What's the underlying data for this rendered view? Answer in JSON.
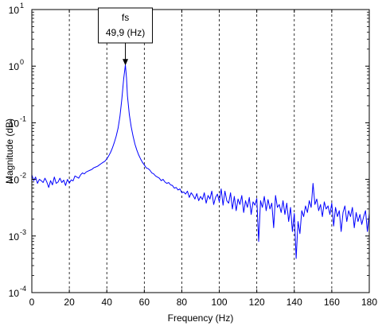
{
  "chart_data": {
    "type": "line",
    "xlabel": "Frequency (Hz)",
    "ylabel": "Magnitude  (dB)",
    "xlim": [
      0,
      180
    ],
    "ylim": [
      0.0001,
      10
    ],
    "yscale": "log",
    "x_ticks": [
      0,
      20,
      40,
      60,
      80,
      100,
      120,
      140,
      160,
      180
    ],
    "x_tick_labels": [
      "0",
      "20",
      "40",
      "60",
      "80",
      "100",
      "120",
      "140",
      "160",
      "180"
    ],
    "y_ticks": [
      {
        "value": 0.0001,
        "base": "10",
        "exp": "-4"
      },
      {
        "value": 0.001,
        "base": "10",
        "exp": "-3"
      },
      {
        "value": 0.01,
        "base": "10",
        "exp": "-2"
      },
      {
        "value": 0.1,
        "base": "10",
        "exp": "-1"
      },
      {
        "value": 1,
        "base": "10",
        "exp": "0"
      },
      {
        "value": 10,
        "base": "10",
        "exp": "1"
      }
    ],
    "grid": "vertical dashed lines at x ticks",
    "line_color": "#0000ff",
    "annotation": {
      "line1": "fs",
      "line2": "49,9 (Hz)",
      "x": 49.9,
      "y": 1.0
    },
    "series": [
      {
        "points": [
          [
            0,
            0.012
          ],
          [
            1,
            0.0095
          ],
          [
            2,
            0.011
          ],
          [
            3,
            0.0085
          ],
          [
            4,
            0.01
          ],
          [
            5,
            0.0095
          ],
          [
            6,
            0.0088
          ],
          [
            7,
            0.0105
          ],
          [
            8,
            0.009
          ],
          [
            9,
            0.0072
          ],
          [
            10,
            0.0095
          ],
          [
            11,
            0.008
          ],
          [
            12,
            0.011
          ],
          [
            13,
            0.0085
          ],
          [
            14,
            0.009
          ],
          [
            15,
            0.0105
          ],
          [
            16,
            0.0088
          ],
          [
            17,
            0.0097
          ],
          [
            18,
            0.0078
          ],
          [
            19,
            0.01
          ],
          [
            20,
            0.0086
          ],
          [
            21,
            0.0098
          ],
          [
            22,
            0.0094
          ],
          [
            23,
            0.0115
          ],
          [
            24,
            0.011
          ],
          [
            25,
            0.0105
          ],
          [
            26,
            0.012
          ],
          [
            27,
            0.013
          ],
          [
            28,
            0.0125
          ],
          [
            29,
            0.0135
          ],
          [
            30,
            0.014
          ],
          [
            31,
            0.0145
          ],
          [
            32,
            0.015
          ],
          [
            33,
            0.016
          ],
          [
            34,
            0.0165
          ],
          [
            35,
            0.017
          ],
          [
            36,
            0.018
          ],
          [
            37,
            0.019
          ],
          [
            38,
            0.02
          ],
          [
            39,
            0.021
          ],
          [
            40,
            0.023
          ],
          [
            41,
            0.026
          ],
          [
            42,
            0.03
          ],
          [
            43,
            0.036
          ],
          [
            44,
            0.045
          ],
          [
            45,
            0.058
          ],
          [
            46,
            0.08
          ],
          [
            47,
            0.13
          ],
          [
            48,
            0.26
          ],
          [
            49,
            0.6
          ],
          [
            49.9,
            1.05
          ],
          [
            50.5,
            0.62
          ],
          [
            51,
            0.3
          ],
          [
            52,
            0.14
          ],
          [
            53,
            0.085
          ],
          [
            54,
            0.058
          ],
          [
            55,
            0.042
          ],
          [
            56,
            0.033
          ],
          [
            57,
            0.027
          ],
          [
            58,
            0.023
          ],
          [
            59,
            0.02
          ],
          [
            60,
            0.018
          ],
          [
            61,
            0.016
          ],
          [
            62,
            0.0155
          ],
          [
            63,
            0.0145
          ],
          [
            64,
            0.013
          ],
          [
            65,
            0.0125
          ],
          [
            66,
            0.0115
          ],
          [
            67,
            0.011
          ],
          [
            68,
            0.0105
          ],
          [
            69,
            0.0095
          ],
          [
            70,
            0.01
          ],
          [
            71,
            0.009
          ],
          [
            72,
            0.0085
          ],
          [
            73,
            0.0088
          ],
          [
            74,
            0.008
          ],
          [
            75,
            0.0078
          ],
          [
            76,
            0.007
          ],
          [
            77,
            0.0072
          ],
          [
            78,
            0.0065
          ],
          [
            79,
            0.0068
          ],
          [
            80,
            0.0058
          ],
          [
            81,
            0.006
          ],
          [
            82,
            0.0055
          ],
          [
            83,
            0.0062
          ],
          [
            84,
            0.0048
          ],
          [
            85,
            0.0058
          ],
          [
            86,
            0.0052
          ],
          [
            87,
            0.0045
          ],
          [
            88,
            0.0056
          ],
          [
            89,
            0.0042
          ],
          [
            90,
            0.005
          ],
          [
            91,
            0.0044
          ],
          [
            92,
            0.0058
          ],
          [
            93,
            0.0038
          ],
          [
            94,
            0.0052
          ],
          [
            95,
            0.0045
          ],
          [
            96,
            0.0062
          ],
          [
            97,
            0.0036
          ],
          [
            98,
            0.0048
          ],
          [
            99,
            0.0055
          ],
          [
            100,
            0.004
          ],
          [
            101,
            0.0068
          ],
          [
            102,
            0.0035
          ],
          [
            103,
            0.0062
          ],
          [
            104,
            0.0042
          ],
          [
            105,
            0.0038
          ],
          [
            106,
            0.0058
          ],
          [
            107,
            0.003
          ],
          [
            108,
            0.005
          ],
          [
            109,
            0.0028
          ],
          [
            110,
            0.0045
          ],
          [
            111,
            0.0036
          ],
          [
            112,
            0.0052
          ],
          [
            113,
            0.0026
          ],
          [
            114,
            0.0042
          ],
          [
            115,
            0.0032
          ],
          [
            116,
            0.0048
          ],
          [
            117,
            0.0024
          ],
          [
            118,
            0.004
          ],
          [
            119,
            0.0035
          ],
          [
            120,
            0.0046
          ],
          [
            121,
            0.0008
          ],
          [
            122,
            0.0042
          ],
          [
            123,
            0.0032
          ],
          [
            124,
            0.005
          ],
          [
            125,
            0.0028
          ],
          [
            126,
            0.0044
          ],
          [
            127,
            0.003
          ],
          [
            128,
            0.0038
          ],
          [
            129,
            0.0014
          ],
          [
            130,
            0.0052
          ],
          [
            131,
            0.0032
          ],
          [
            132,
            0.0036
          ],
          [
            133,
            0.0026
          ],
          [
            134,
            0.0042
          ],
          [
            135,
            0.0024
          ],
          [
            136,
            0.0038
          ],
          [
            137,
            0.0018
          ],
          [
            138,
            0.0032
          ],
          [
            139,
            0.0012
          ],
          [
            140,
            0.0025
          ],
          [
            141,
            0.0004
          ],
          [
            142,
            0.0018
          ],
          [
            143,
            0.0011
          ],
          [
            144,
            0.0028
          ],
          [
            145,
            0.0022
          ],
          [
            146,
            0.0034
          ],
          [
            147,
            0.0026
          ],
          [
            148,
            0.0042
          ],
          [
            149,
            0.0032
          ],
          [
            150,
            0.0085
          ],
          [
            151,
            0.0036
          ],
          [
            152,
            0.0045
          ],
          [
            153,
            0.0028
          ],
          [
            154,
            0.0036
          ],
          [
            155,
            0.0022
          ],
          [
            156,
            0.004
          ],
          [
            157,
            0.003
          ],
          [
            158,
            0.0034
          ],
          [
            159,
            0.0024
          ],
          [
            160,
            0.0038
          ],
          [
            161,
            0.0015
          ],
          [
            162,
            0.0032
          ],
          [
            163,
            0.0022
          ],
          [
            164,
            0.0028
          ],
          [
            165,
            0.0012
          ],
          [
            166,
            0.0026
          ],
          [
            167,
            0.0034
          ],
          [
            168,
            0.0018
          ],
          [
            169,
            0.0028
          ],
          [
            170,
            0.0022
          ],
          [
            171,
            0.0032
          ],
          [
            172,
            0.0014
          ],
          [
            173,
            0.0026
          ],
          [
            174,
            0.0018
          ],
          [
            175,
            0.0024
          ],
          [
            176,
            0.0016
          ],
          [
            177,
            0.0022
          ],
          [
            178,
            0.0028
          ],
          [
            179,
            0.0012
          ],
          [
            180,
            0.0025
          ]
        ]
      }
    ]
  }
}
